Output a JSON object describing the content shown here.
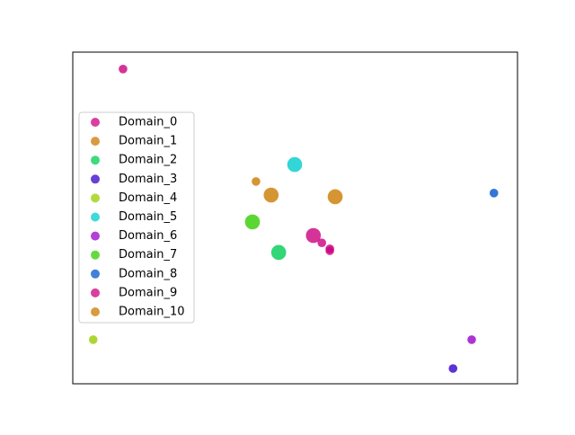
{
  "chart_data": {
    "type": "scatter",
    "xlim": [
      0,
      1
    ],
    "ylim": [
      0,
      1
    ],
    "series": [
      {
        "name": "Domain_0",
        "color": "#cc0080",
        "x": [
          0.113,
          0.541
        ],
        "values": [
          0.949,
          0.447
        ],
        "sizes": [
          50,
          150
        ]
      },
      {
        "name": "Domain_1",
        "color": "#cc7a00",
        "x": [
          0.412,
          0.446
        ],
        "values": [
          0.61,
          0.569
        ],
        "sizes": [
          50,
          150
        ]
      },
      {
        "name": "Domain_2",
        "color": "#00cc55",
        "x": [
          0.463
        ],
        "values": [
          0.396
        ],
        "sizes": [
          150
        ]
      },
      {
        "name": "Domain_3",
        "color": "#3300cc",
        "x": [
          0.855
        ],
        "values": [
          0.046
        ],
        "sizes": [
          50
        ]
      },
      {
        "name": "Domain_4",
        "color": "#99cc00",
        "x": [
          0.046
        ],
        "values": [
          0.133
        ],
        "sizes": [
          50
        ]
      },
      {
        "name": "Domain_5",
        "color": "#00cccc",
        "x": [
          0.499
        ],
        "values": [
          0.661
        ],
        "sizes": [
          150
        ]
      },
      {
        "name": "Domain_6",
        "color": "#9900cc",
        "x": [
          0.897
        ],
        "values": [
          0.133
        ],
        "sizes": [
          50
        ]
      },
      {
        "name": "Domain_7",
        "color": "#33cc00",
        "x": [
          0.404
        ],
        "values": [
          0.488
        ],
        "sizes": [
          150
        ]
      },
      {
        "name": "Domain_8",
        "color": "#0055cc",
        "x": [
          0.947
        ],
        "values": [
          0.575
        ],
        "sizes": [
          50
        ]
      },
      {
        "name": "Domain_9",
        "color": "#cc0080",
        "x": [
          0.56,
          0.578,
          0.578
        ],
        "values": [
          0.425,
          0.407,
          0.401
        ],
        "sizes": [
          50,
          50,
          50
        ]
      },
      {
        "name": "Domain_10",
        "color": "#cc7a00",
        "x": [
          0.59
        ],
        "values": [
          0.564
        ],
        "sizes": [
          150
        ]
      }
    ]
  }
}
